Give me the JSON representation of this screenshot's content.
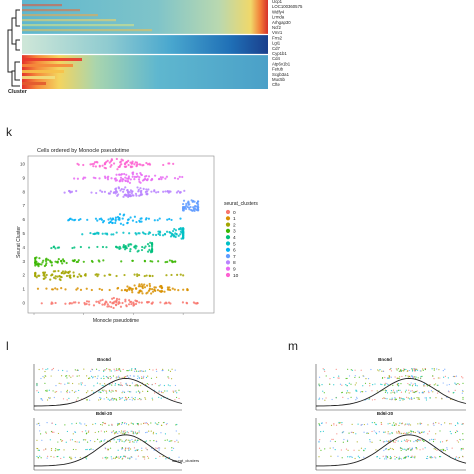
{
  "heatmap": {
    "gene_labels": [
      "Ucp1",
      "LOC100360575",
      "Wdfy4",
      "Lrmda",
      "Arhgap30",
      "Ncf2",
      "Vmr1",
      "Frrs2",
      "Lgi1",
      "Cd7",
      "Cyp1b1",
      "Cd4",
      "Atp6v1b1",
      "Fetub",
      "Scgb3a1",
      "Muc5b",
      "Cfte"
    ],
    "row_colors": [
      "#ec4e2c",
      "#f16a30",
      "#f7a540",
      "#fbd35c",
      "#e2e57d",
      "#f3c04c",
      "#e35b2e"
    ],
    "side_label": "Cluster"
  },
  "panel_k": {
    "letter": "k",
    "title": "Cells ordered by Monocle pseudotime",
    "xlabel": "Monocle pseudotime",
    "ylabel": "Seurat Cluster",
    "legend_title": "seurat_clusters"
  },
  "panel_l": {
    "letter": "l",
    "gene1": "Bnc6d",
    "gene2": "Bd6l-20",
    "legend_label": "seurat_clusters"
  },
  "panel_m": {
    "letter": "m",
    "gene1": "Bnc6d",
    "gene2": "Bd6l-20"
  },
  "chart_data": [
    {
      "type": "scatter",
      "title": "Cells ordered by Monocle pseudotime",
      "xlabel": "Monocle pseudotime",
      "ylabel": "Seurat Cluster",
      "legend": "right",
      "series": [
        {
          "name": "0",
          "color": "#f8766d",
          "x_range": [
            0.3,
            13.2
          ],
          "peak": 6.5
        },
        {
          "name": "1",
          "color": "#d89000",
          "x_range": [
            0.2,
            12.8
          ],
          "peak": 9.0
        },
        {
          "name": "2",
          "color": "#a3a500",
          "x_range": [
            0.1,
            12.5
          ],
          "peak": 1.8
        },
        {
          "name": "3",
          "color": "#39b600",
          "x_range": [
            0.1,
            11.8
          ],
          "peak": 0.8
        },
        {
          "name": "4",
          "color": "#00bf7d",
          "x_range": [
            1.0,
            9.5
          ],
          "peak": 8.8
        },
        {
          "name": "5",
          "color": "#00bfc4",
          "x_range": [
            3.5,
            12.0
          ],
          "peak": 12.0
        },
        {
          "name": "6",
          "color": "#00b0f6",
          "x_range": [
            2.0,
            12.2
          ],
          "peak": 7.0
        },
        {
          "name": "7",
          "color": "#619cff",
          "x_range": [
            12.0,
            13.2
          ],
          "peak": 12.6
        },
        {
          "name": "8",
          "color": "#b983ff",
          "x_range": [
            2.0,
            12.2
          ],
          "peak": 7.5
        },
        {
          "name": "9",
          "color": "#e76bf3",
          "x_range": [
            2.5,
            12.0
          ],
          "peak": 8.0
        },
        {
          "name": "10",
          "color": "#fd61d1",
          "x_range": [
            3.5,
            11.5
          ],
          "peak": 6.5
        }
      ]
    },
    {
      "type": "scatter",
      "panel": "l",
      "gene": "Bnc6d",
      "series_colors": [
        "#f8766d",
        "#a3a500",
        "#39b600",
        "#00bfc4",
        "#619cff"
      ]
    },
    {
      "type": "scatter",
      "panel": "l",
      "gene": "Bd6l-20",
      "series_colors": [
        "#f8766d",
        "#a3a500",
        "#39b600",
        "#00bfc4",
        "#619cff"
      ]
    },
    {
      "type": "scatter",
      "panel": "m",
      "gene": "Bnc6d",
      "series_colors": [
        "#f8766d",
        "#a3a500",
        "#39b600",
        "#00bfc4",
        "#619cff"
      ]
    },
    {
      "type": "scatter",
      "panel": "m",
      "gene": "Bd6l-20",
      "series_colors": [
        "#f8766d",
        "#a3a500",
        "#39b600",
        "#00bfc4",
        "#619cff"
      ]
    }
  ]
}
